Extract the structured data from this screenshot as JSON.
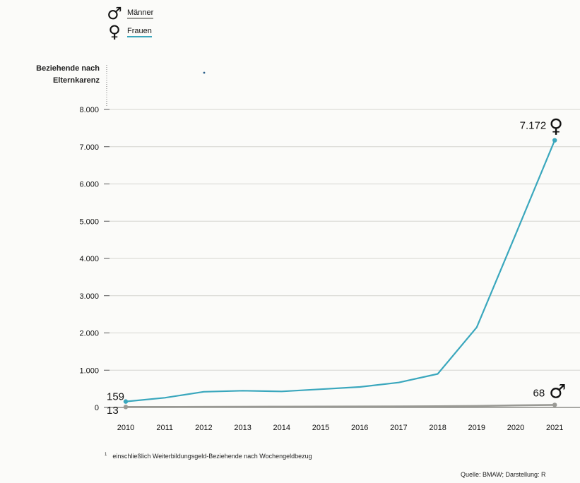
{
  "legend": {
    "men": {
      "symbol": "♂",
      "label": "Männer",
      "color": "#9a9a95"
    },
    "women": {
      "symbol": "♀",
      "label": "Frauen",
      "color": "#3aa7bd"
    }
  },
  "footnote": {
    "marker": "1",
    "text": "einschließlich Weiterbildungsgeld-Beziehende nach Wochengeldbezug"
  },
  "source": "Quelle: BMAW; Darstellung: R",
  "chart_data": {
    "type": "line",
    "title": "",
    "ylabel_lines": [
      "Beziehende nach",
      "Elternkarenz"
    ],
    "xlabel": "",
    "x": [
      "2010",
      "2011",
      "2012",
      "2013",
      "2014",
      "2015",
      "2016",
      "2017",
      "2018",
      "2019",
      "2020",
      "2021"
    ],
    "ylim": [
      0,
      8000
    ],
    "yticks": [
      0,
      1000,
      2000,
      3000,
      4000,
      5000,
      6000,
      7000,
      8000
    ],
    "ytick_labels": [
      "0",
      "1.000",
      "2.000",
      "3.000",
      "4.000",
      "5.000",
      "6.000",
      "7.000",
      "8.000"
    ],
    "grid": true,
    "legend_position": "top-left",
    "series": [
      {
        "name": "Frauen",
        "symbol": "♀",
        "color": "#3aa7bd",
        "values": [
          159,
          260,
          420,
          450,
          430,
          490,
          550,
          670,
          900,
          2150,
          4650,
          7172
        ],
        "start_label": "159",
        "end_label": "7.172"
      },
      {
        "name": "Männer",
        "symbol": "♂",
        "color": "#9a9a95",
        "values": [
          13,
          14,
          16,
          18,
          20,
          22,
          25,
          28,
          32,
          40,
          55,
          68
        ],
        "start_label": "13",
        "end_label": "68"
      }
    ]
  }
}
